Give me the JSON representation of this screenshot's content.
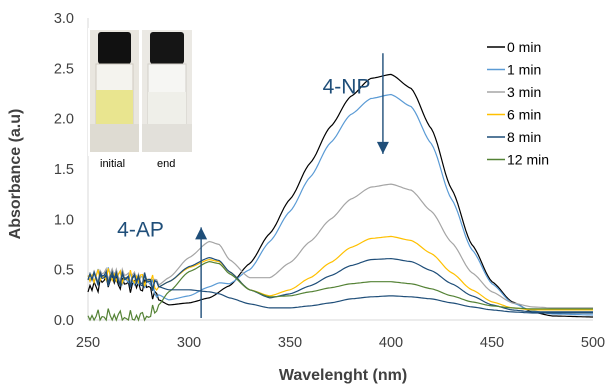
{
  "chart_data": {
    "type": "line",
    "xlabel": "Wavelenght (nm)",
    "ylabel": "Absorbance (a.u)",
    "xlim": [
      250,
      500
    ],
    "ylim": [
      0,
      3.0
    ],
    "xticks": [
      250,
      300,
      350,
      400,
      450,
      500
    ],
    "yticks": [
      "0.0",
      "0.5",
      "1.0",
      "1.5",
      "2.0",
      "2.5",
      "3.0"
    ],
    "legend_position": "top-right",
    "series": [
      {
        "name": "0 min",
        "color": "#000000",
        "points": [
          [
            250,
            0.3
          ],
          [
            260,
            0.4
          ],
          [
            270,
            0.35
          ],
          [
            280,
            0.33
          ],
          [
            285,
            0.2
          ],
          [
            290,
            0.15
          ],
          [
            300,
            0.17
          ],
          [
            310,
            0.22
          ],
          [
            320,
            0.34
          ],
          [
            330,
            0.56
          ],
          [
            340,
            0.86
          ],
          [
            350,
            1.2
          ],
          [
            360,
            1.56
          ],
          [
            370,
            1.92
          ],
          [
            380,
            2.22
          ],
          [
            390,
            2.4
          ],
          [
            400,
            2.44
          ],
          [
            410,
            2.3
          ],
          [
            420,
            1.9
          ],
          [
            430,
            1.3
          ],
          [
            440,
            0.75
          ],
          [
            450,
            0.38
          ],
          [
            460,
            0.18
          ],
          [
            470,
            0.08
          ],
          [
            480,
            0.04
          ],
          [
            500,
            0.03
          ]
        ]
      },
      {
        "name": "1 min",
        "color": "#5b9bd5",
        "points": [
          [
            250,
            0.42
          ],
          [
            260,
            0.45
          ],
          [
            270,
            0.4
          ],
          [
            280,
            0.38
          ],
          [
            285,
            0.25
          ],
          [
            290,
            0.2
          ],
          [
            300,
            0.24
          ],
          [
            310,
            0.33
          ],
          [
            315,
            0.37
          ],
          [
            320,
            0.36
          ],
          [
            330,
            0.5
          ],
          [
            340,
            0.78
          ],
          [
            350,
            1.08
          ],
          [
            360,
            1.42
          ],
          [
            370,
            1.76
          ],
          [
            380,
            2.04
          ],
          [
            390,
            2.2
          ],
          [
            400,
            2.24
          ],
          [
            410,
            2.12
          ],
          [
            420,
            1.75
          ],
          [
            430,
            1.2
          ],
          [
            440,
            0.7
          ],
          [
            450,
            0.36
          ],
          [
            460,
            0.17
          ],
          [
            470,
            0.09
          ],
          [
            480,
            0.06
          ],
          [
            500,
            0.05
          ]
        ]
      },
      {
        "name": "3 min",
        "color": "#a5a5a5",
        "points": [
          [
            250,
            0.42
          ],
          [
            260,
            0.47
          ],
          [
            270,
            0.44
          ],
          [
            280,
            0.4
          ],
          [
            285,
            0.35
          ],
          [
            290,
            0.42
          ],
          [
            300,
            0.62
          ],
          [
            310,
            0.78
          ],
          [
            315,
            0.75
          ],
          [
            320,
            0.6
          ],
          [
            330,
            0.42
          ],
          [
            340,
            0.42
          ],
          [
            350,
            0.57
          ],
          [
            360,
            0.78
          ],
          [
            370,
            1.0
          ],
          [
            380,
            1.2
          ],
          [
            390,
            1.32
          ],
          [
            400,
            1.35
          ],
          [
            410,
            1.29
          ],
          [
            420,
            1.08
          ],
          [
            430,
            0.77
          ],
          [
            440,
            0.47
          ],
          [
            450,
            0.28
          ],
          [
            460,
            0.17
          ],
          [
            470,
            0.13
          ],
          [
            480,
            0.12
          ],
          [
            500,
            0.12
          ]
        ]
      },
      {
        "name": "6 min",
        "color": "#ffc000",
        "points": [
          [
            250,
            0.42
          ],
          [
            260,
            0.44
          ],
          [
            270,
            0.42
          ],
          [
            280,
            0.4
          ],
          [
            285,
            0.33
          ],
          [
            290,
            0.38
          ],
          [
            300,
            0.52
          ],
          [
            310,
            0.6
          ],
          [
            315,
            0.58
          ],
          [
            320,
            0.48
          ],
          [
            330,
            0.3
          ],
          [
            340,
            0.24
          ],
          [
            350,
            0.3
          ],
          [
            360,
            0.42
          ],
          [
            370,
            0.57
          ],
          [
            380,
            0.72
          ],
          [
            390,
            0.81
          ],
          [
            400,
            0.83
          ],
          [
            410,
            0.79
          ],
          [
            420,
            0.66
          ],
          [
            430,
            0.47
          ],
          [
            440,
            0.3
          ],
          [
            450,
            0.18
          ],
          [
            460,
            0.12
          ],
          [
            470,
            0.1
          ],
          [
            480,
            0.1
          ],
          [
            500,
            0.1
          ]
        ]
      },
      {
        "name": "8 min",
        "color": "#1f4e79",
        "points": [
          [
            250,
            0.42
          ],
          [
            260,
            0.44
          ],
          [
            270,
            0.41
          ],
          [
            280,
            0.4
          ],
          [
            285,
            0.33
          ],
          [
            290,
            0.38
          ],
          [
            300,
            0.53
          ],
          [
            310,
            0.62
          ],
          [
            315,
            0.59
          ],
          [
            320,
            0.48
          ],
          [
            330,
            0.3
          ],
          [
            340,
            0.22
          ],
          [
            350,
            0.26
          ],
          [
            360,
            0.34
          ],
          [
            370,
            0.44
          ],
          [
            380,
            0.54
          ],
          [
            390,
            0.6
          ],
          [
            400,
            0.61
          ],
          [
            410,
            0.58
          ],
          [
            420,
            0.49
          ],
          [
            430,
            0.36
          ],
          [
            440,
            0.24
          ],
          [
            450,
            0.15
          ],
          [
            460,
            0.1
          ],
          [
            470,
            0.08
          ],
          [
            480,
            0.08
          ],
          [
            500,
            0.08
          ]
        ]
      },
      {
        "name": "12 min",
        "color": "#548235",
        "points": [
          [
            250,
            0.02
          ],
          [
            260,
            0.04
          ],
          [
            270,
            0.02
          ],
          [
            280,
            0.03
          ],
          [
            285,
            0.15
          ],
          [
            290,
            0.28
          ],
          [
            300,
            0.48
          ],
          [
            310,
            0.58
          ],
          [
            315,
            0.56
          ],
          [
            320,
            0.46
          ],
          [
            330,
            0.3
          ],
          [
            340,
            0.23
          ],
          [
            350,
            0.24
          ],
          [
            360,
            0.28
          ],
          [
            370,
            0.32
          ],
          [
            380,
            0.36
          ],
          [
            390,
            0.38
          ],
          [
            400,
            0.38
          ],
          [
            410,
            0.36
          ],
          [
            420,
            0.31
          ],
          [
            430,
            0.24
          ],
          [
            440,
            0.18
          ],
          [
            450,
            0.14
          ],
          [
            460,
            0.12
          ],
          [
            470,
            0.11
          ],
          [
            480,
            0.11
          ],
          [
            500,
            0.11
          ]
        ]
      },
      {
        "name": "",
        "color": "#1f4e79",
        "points": [
          [
            250,
            0.42
          ],
          [
            260,
            0.41
          ],
          [
            270,
            0.4
          ],
          [
            280,
            0.38
          ],
          [
            285,
            0.33
          ],
          [
            290,
            0.3
          ],
          [
            300,
            0.3
          ],
          [
            310,
            0.28
          ],
          [
            315,
            0.26
          ],
          [
            320,
            0.22
          ],
          [
            330,
            0.16
          ],
          [
            340,
            0.12
          ],
          [
            350,
            0.12
          ],
          [
            360,
            0.14
          ],
          [
            370,
            0.17
          ],
          [
            380,
            0.21
          ],
          [
            390,
            0.23
          ],
          [
            400,
            0.24
          ],
          [
            410,
            0.23
          ],
          [
            420,
            0.21
          ],
          [
            430,
            0.17
          ],
          [
            440,
            0.13
          ],
          [
            450,
            0.1
          ],
          [
            460,
            0.08
          ],
          [
            470,
            0.07
          ],
          [
            480,
            0.07
          ],
          [
            500,
            0.07
          ]
        ]
      }
    ],
    "annotations": [
      {
        "text": "4-NP",
        "x": 378,
        "y": 2.25,
        "color": "#1f4e79",
        "arrow": {
          "from": [
            396,
            2.65
          ],
          "to": [
            396,
            1.65
          ],
          "color": "#1f4e79"
        }
      },
      {
        "text": "4-AP",
        "x": 276,
        "y": 0.83,
        "color": "#1f4e79",
        "arrow": {
          "from": [
            306,
            0.02
          ],
          "to": [
            306,
            0.92
          ],
          "color": "#1f4e79"
        }
      }
    ],
    "inset": {
      "labels": [
        "initial",
        "end"
      ]
    }
  }
}
